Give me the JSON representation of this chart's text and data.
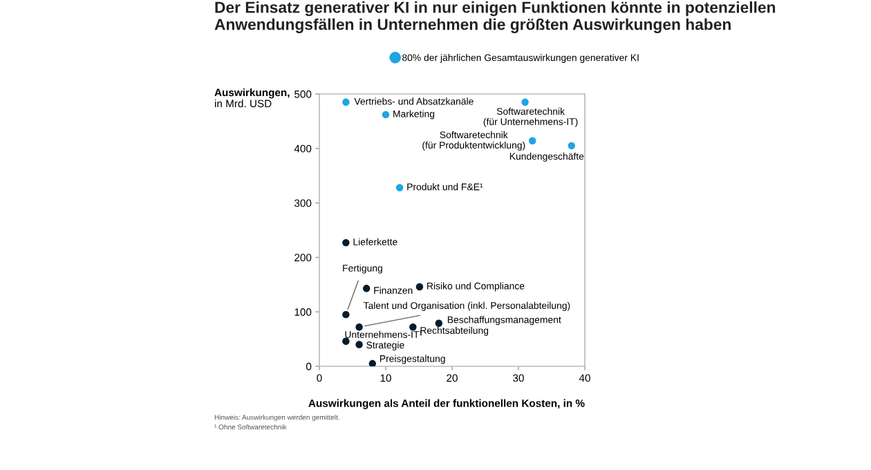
{
  "chart_data": {
    "type": "scatter",
    "title": "Der Einsatz generativer KI in nur einigen Funktionen könnte in potenziellen Anwendungsfällen in Unternehmen die größten Auswirkungen haben",
    "xlabel": "Auswirkungen als Anteil der funktionellen Kosten, in %",
    "ylabel": "Auswirkungen,\nin Mrd. USD",
    "series": [
      {
        "name": "80% der jährlichen Gesamtauswirkungen generativer KI",
        "color": "#1fa5e0",
        "x": [
          4,
          10,
          31,
          32.1,
          38,
          12.1
        ],
        "values": [
          485,
          462,
          485,
          414,
          405,
          328
        ]
      },
      {
        "color": "#051c2c",
        "x": [
          4,
          4,
          7.1,
          15.1,
          6,
          18,
          14.1,
          4,
          6,
          8
        ],
        "values": [
          227,
          95,
          143,
          146,
          72,
          79,
          72,
          46,
          40,
          5
        ]
      }
    ],
    "annotations": [
      {
        "text": "Vertriebs- und Absatzkanäle",
        "x": 4,
        "y": 485
      },
      {
        "text": "Marketing",
        "x": 10,
        "y": 462
      },
      {
        "text": "Softwaretechnik\n(für Unternehmens-IT)",
        "x": 31,
        "y": 485
      },
      {
        "text": "Softwaretechnik\n(für Produktentwicklung)",
        "x": 32.1,
        "y": 414
      },
      {
        "text": "Kundengeschäfte",
        "x": 38,
        "y": 405
      },
      {
        "text": "Produkt und F&E¹",
        "x": 12.1,
        "y": 328
      },
      {
        "text": "Lieferkette",
        "x": 4,
        "y": 227
      },
      {
        "text": "Fertigung",
        "x": 4,
        "y": 95
      },
      {
        "text": "Finanzen",
        "x": 7.1,
        "y": 143
      },
      {
        "text": "Risiko und Compliance",
        "x": 15.1,
        "y": 146
      },
      {
        "text": "Talent und Organisation (inkl. Personalabteilung)",
        "x": 6,
        "y": 72
      },
      {
        "text": "Beschaffungsmanagement",
        "x": 18,
        "y": 79
      },
      {
        "text": "Rechtsabteilung",
        "x": 14.1,
        "y": 72
      },
      {
        "text": "Unternehmens-IT¹",
        "x": 4,
        "y": 46
      },
      {
        "text": "Strategie",
        "x": 6,
        "y": 40
      },
      {
        "text": "Preisgestaltung",
        "x": 8,
        "y": 5
      },
      "Hinweis: Auswirkungen werden gemittelt.",
      "¹ Ohne Softwaretechnik"
    ],
    "xlim": [
      0,
      40
    ],
    "xticks": [
      0,
      10,
      20,
      30,
      40
    ],
    "ylim": [
      0,
      500
    ],
    "yticks": [
      0,
      100,
      200,
      300,
      400,
      500
    ],
    "grid": false,
    "legend": "top right",
    "marker": "circle"
  }
}
